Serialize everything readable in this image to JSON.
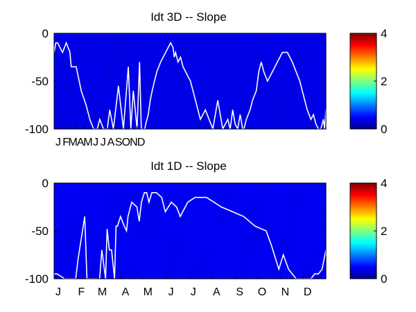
{
  "chart_data": [
    {
      "type": "heatmap",
      "title": "Idt 3D   -- Slope",
      "ylim": [
        -100,
        0
      ],
      "yticks": [
        0,
        -50,
        -100
      ],
      "ytick_labels": [
        "0",
        "-50",
        "-100"
      ],
      "x_range_days": [
        1,
        1095
      ],
      "xtick_labels": [
        "J",
        "F",
        "M",
        "A",
        "M",
        "J",
        "J",
        "A",
        "S",
        "O",
        "N",
        "D"
      ],
      "xtick_days": [
        1,
        32,
        60,
        91,
        121,
        152,
        182,
        213,
        244,
        274,
        305,
        335
      ],
      "colorbar": {
        "min": 0,
        "max": 4,
        "tick_labels": [
          "0",
          "2",
          "4"
        ],
        "colormap": "jet"
      },
      "field_level": 0.3,
      "line_color": "#ffffff",
      "line": {
        "x": [
          1,
          8,
          15,
          35,
          50,
          65,
          70,
          90,
          110,
          130,
          145,
          160,
          175,
          185,
          200,
          215,
          225,
          240,
          260,
          280,
          300,
          310,
          320,
          335,
          345,
          352,
          360,
          366,
          370,
          380,
          388,
          396,
          405,
          415,
          430,
          450,
          470,
          480,
          485,
          490,
          500,
          510,
          520,
          530,
          540,
          550,
          570,
          590,
          610,
          625,
          640,
          660,
          680,
          700,
          710,
          720,
          730,
          740,
          750,
          760,
          765,
          775,
          790,
          800,
          815,
          825,
          835,
          845,
          860,
          880,
          900,
          920,
          940,
          960,
          975,
          990,
          1010,
          1020,
          1035,
          1045,
          1055,
          1065,
          1075,
          1085,
          1090,
          1095
        ],
        "y": [
          -20,
          -10,
          -10,
          -20,
          -10,
          -20,
          -35,
          -35,
          -60,
          -75,
          -90,
          -100,
          -100,
          -90,
          -100,
          -100,
          -80,
          -100,
          -55,
          -100,
          -35,
          -100,
          -60,
          -100,
          -30,
          -100,
          -100,
          -100,
          -95,
          -85,
          -70,
          -60,
          -50,
          -40,
          -30,
          -20,
          -10,
          -15,
          -25,
          -20,
          -30,
          -25,
          -35,
          -40,
          -45,
          -50,
          -70,
          -90,
          -80,
          -90,
          -100,
          -70,
          -100,
          -90,
          -100,
          -80,
          -95,
          -100,
          -85,
          -100,
          -100,
          -90,
          -80,
          -70,
          -60,
          -40,
          -30,
          -40,
          -50,
          -40,
          -30,
          -20,
          -20,
          -30,
          -40,
          -50,
          -70,
          -80,
          -90,
          -85,
          -95,
          -100,
          -100,
          -90,
          -100,
          -80
        ]
      }
    },
    {
      "type": "heatmap",
      "title": "Idt 1D   -- Slope",
      "ylim": [
        -100,
        0
      ],
      "yticks": [
        0,
        -50,
        -100
      ],
      "ytick_labels": [
        "0",
        "-50",
        "-100"
      ],
      "x_range_days": [
        1,
        365
      ],
      "xtick_labels": [
        "J",
        "F",
        "M",
        "A",
        "M",
        "J",
        "J",
        "A",
        "S",
        "O",
        "N",
        "D"
      ],
      "xtick_days": [
        1,
        32,
        60,
        91,
        121,
        152,
        182,
        213,
        244,
        274,
        305,
        335
      ],
      "colorbar": {
        "min": 0,
        "max": 4,
        "tick_labels": [
          "0",
          "2",
          "4"
        ],
        "colormap": "jet"
      },
      "field_level": 0.45,
      "line_color": "#ffffff",
      "line": {
        "x": [
          1,
          5,
          15,
          30,
          33,
          42,
          45,
          48,
          50,
          55,
          62,
          65,
          70,
          72,
          75,
          78,
          82,
          84,
          86,
          90,
          95,
          98,
          100,
          105,
          112,
          115,
          118,
          122,
          125,
          128,
          132,
          138,
          145,
          150,
          158,
          165,
          170,
          180,
          190,
          205,
          215,
          225,
          240,
          255,
          270,
          285,
          292,
          298,
          302,
          308,
          315,
          325,
          335,
          345,
          350,
          355,
          360,
          365
        ],
        "y": [
          -95,
          -95,
          -100,
          -100,
          -80,
          -35,
          -100,
          -100,
          -100,
          -100,
          -100,
          -70,
          -100,
          -48,
          -70,
          -70,
          -100,
          -45,
          -45,
          -35,
          -45,
          -50,
          -35,
          -20,
          -25,
          -40,
          -20,
          -10,
          -10,
          -20,
          -10,
          -10,
          -15,
          -30,
          -20,
          -25,
          -35,
          -20,
          -15,
          -15,
          -20,
          -25,
          -30,
          -35,
          -45,
          -50,
          -65,
          -80,
          -90,
          -75,
          -90,
          -100,
          -100,
          -100,
          -95,
          -95,
          -90,
          -70
        ]
      }
    }
  ]
}
